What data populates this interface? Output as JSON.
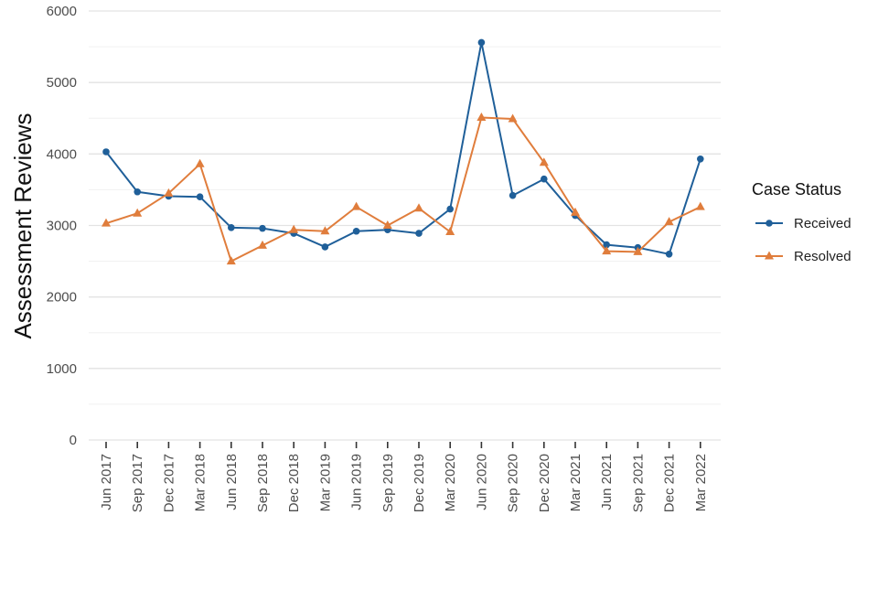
{
  "chart_data": {
    "type": "line",
    "title": "",
    "xlabel": "",
    "ylabel": "Assessment Reviews",
    "ylim": [
      0,
      6000
    ],
    "y_ticks": [
      0,
      1000,
      2000,
      3000,
      4000,
      5000,
      6000
    ],
    "grid": true,
    "legend_placement": "right",
    "legend_title": "Case Status",
    "categories": [
      "Jun 2017",
      "Sep 2017",
      "Dec 2017",
      "Mar 2018",
      "Jun 2018",
      "Sep 2018",
      "Dec 2018",
      "Mar 2019",
      "Jun 2019",
      "Sep 2019",
      "Dec 2019",
      "Mar 2020",
      "Jun 2020",
      "Sep 2020",
      "Dec 2020",
      "Mar 2021",
      "Jun 2021",
      "Sep 2021",
      "Dec 2021",
      "Mar 2022"
    ],
    "series": [
      {
        "name": "Received",
        "color": "#1f5f99",
        "marker": "circle",
        "values": [
          4030,
          3470,
          3410,
          3400,
          2970,
          2960,
          2890,
          2700,
          2920,
          2940,
          2890,
          3230,
          5560,
          3420,
          3650,
          3140,
          2730,
          2690,
          2600,
          3930
        ]
      },
      {
        "name": "Resolved",
        "color": "#e07d3c",
        "marker": "triangle",
        "values": [
          3030,
          3170,
          3450,
          3860,
          2500,
          2720,
          2940,
          2920,
          3260,
          3000,
          3240,
          2910,
          4510,
          4490,
          3880,
          3180,
          2640,
          2630,
          3050,
          3260
        ]
      }
    ]
  }
}
